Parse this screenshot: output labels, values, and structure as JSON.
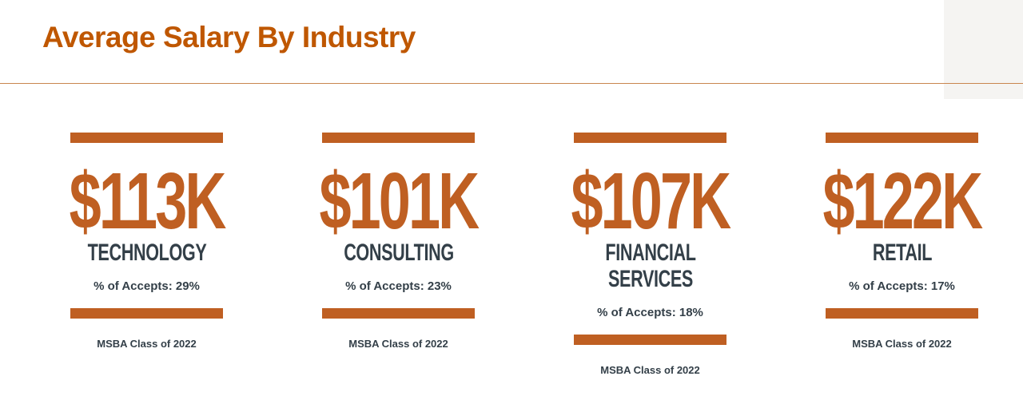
{
  "page": {
    "title": "Average Salary By Industry"
  },
  "cards": [
    {
      "amount": "$113K",
      "industry": "TECHNOLOGY",
      "accepts": "% of Accepts: 29%",
      "class_label": "MSBA Class of 2022"
    },
    {
      "amount": "$101K",
      "industry": "CONSULTING",
      "accepts": "% of Accepts: 23%",
      "class_label": "MSBA Class of 2022"
    },
    {
      "amount": "$107K",
      "industry": "FINANCIAL\nSERVICES",
      "accepts": "% of Accepts: 18%",
      "class_label": "MSBA Class of 2022"
    },
    {
      "amount": "$122K",
      "industry": "RETAIL",
      "accepts": "% of Accepts: 17%",
      "class_label": "MSBA Class of 2022"
    }
  ],
  "colors": {
    "title": "#bf5700",
    "accent": "#bf5f22",
    "text_dark": "#333f48"
  }
}
